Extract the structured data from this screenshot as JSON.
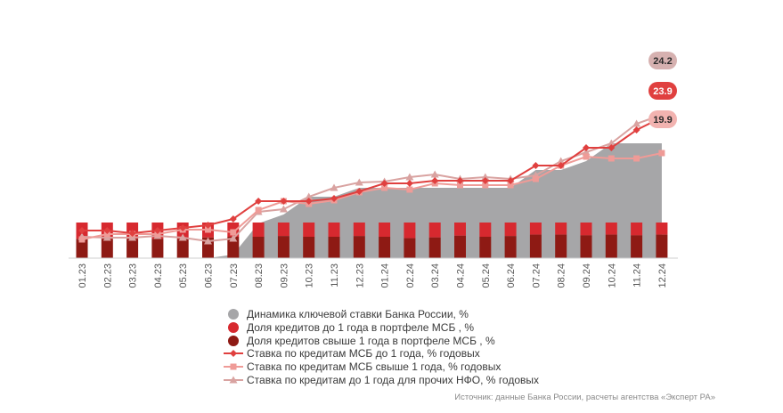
{
  "chart_data": {
    "type": "bar+line+area",
    "categories": [
      "01.23",
      "02.23",
      "03.23",
      "04.23",
      "05.23",
      "06.23",
      "07.23",
      "08.23",
      "09.23",
      "10.23",
      "11.23",
      "12.23",
      "01.24",
      "02.24",
      "03.24",
      "04.24",
      "05.24",
      "06.24",
      "07.24",
      "08.24",
      "09.24",
      "10.24",
      "11.24",
      "12.24"
    ],
    "area": {
      "name": "Динамика ключевой ставки Банка России, %",
      "color": "#a6a6a8",
      "values": [
        7.5,
        7.5,
        7.5,
        7.5,
        7.5,
        7.5,
        8.5,
        12,
        13,
        15,
        15,
        16,
        16,
        16,
        16,
        16,
        16,
        16,
        18,
        18,
        19,
        21,
        21,
        21
      ]
    },
    "bars": [
      {
        "name": "Доля кредитов до 1 года в портфеле МСБ , %",
        "color": "#d7292f",
        "values": [
          46,
          46,
          46,
          46,
          46,
          42,
          40,
          40,
          38,
          40,
          40,
          38,
          40,
          44,
          42,
          37,
          40,
          38,
          34,
          34,
          36,
          34,
          36,
          34
        ]
      },
      {
        "name": "Доля кредитов свыше 1 года в портфеле МСБ , %",
        "color": "#8e1a14",
        "values": [
          54,
          54,
          54,
          54,
          54,
          58,
          60,
          60,
          62,
          60,
          60,
          62,
          60,
          56,
          58,
          63,
          60,
          62,
          66,
          66,
          64,
          66,
          64,
          66
        ]
      }
    ],
    "lines": [
      {
        "name": "Ставка по кредитам МСБ до 1 года, % годовых",
        "color": "#e0403f",
        "marker": "diamond",
        "values": [
          11.2,
          11.2,
          10.9,
          11.2,
          11.5,
          11.8,
          12.5,
          14.5,
          14.5,
          14.5,
          14.8,
          15.6,
          16.5,
          16.5,
          16.8,
          16.8,
          16.8,
          16.8,
          18.5,
          18.5,
          20.5,
          20.5,
          22.5,
          23.9
        ]
      },
      {
        "name": "Ставка по кредитам МСБ свыше 1 года, % годовых",
        "color": "#ef9b97",
        "marker": "square",
        "values": [
          10.2,
          10.8,
          10.8,
          10.8,
          11.3,
          11.3,
          11.0,
          13.5,
          14.5,
          14.2,
          14.6,
          15.5,
          16.0,
          15.8,
          16.5,
          16.3,
          16.3,
          16.3,
          17.0,
          18.5,
          19.5,
          19.3,
          19.3,
          19.9
        ]
      },
      {
        "name": "Ставка по кредитам до 1 года для прочих НФО, % годовых",
        "color": "#d9a3a1",
        "marker": "triangle",
        "values": [
          10.5,
          10.4,
          10.4,
          10.6,
          10.4,
          10.0,
          10.3,
          13.3,
          13.6,
          15.0,
          16.0,
          16.6,
          16.7,
          17.2,
          17.5,
          17.0,
          17.2,
          17.0,
          17.4,
          19.0,
          20.0,
          21.0,
          23.2,
          24.2
        ]
      }
    ],
    "end_labels": [
      "24.2",
      "23.9",
      "19.9"
    ],
    "grid": false,
    "legend": "bottom"
  },
  "source": "Источник: данные Банка России, расчеты агентства «Эксперт РА»"
}
